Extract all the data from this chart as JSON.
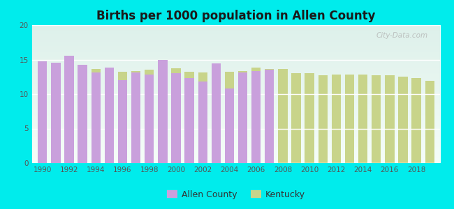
{
  "title": "Births per 1000 population in Allen County",
  "background_color": "#00ECEC",
  "plot_bg_top": "#ddf0ea",
  "plot_bg_bottom": "#f5fdf8",
  "years": [
    1990,
    1991,
    1992,
    1993,
    1994,
    1995,
    1996,
    1997,
    1998,
    1999,
    2000,
    2001,
    2002,
    2003,
    2004,
    2005,
    2006,
    2007,
    2008,
    2009,
    2010,
    2011,
    2012,
    2013,
    2014,
    2015,
    2016,
    2017,
    2018,
    2019
  ],
  "allen_county": [
    14.7,
    14.5,
    15.6,
    14.2,
    13.1,
    13.8,
    12.0,
    13.1,
    12.8,
    14.9,
    13.0,
    12.3,
    11.8,
    14.4,
    10.8,
    13.1,
    13.3,
    13.5,
    null,
    null,
    null,
    null,
    null,
    null,
    null,
    null,
    null,
    null,
    null,
    null
  ],
  "kentucky": [
    14.6,
    14.3,
    14.2,
    13.8,
    13.6,
    13.6,
    13.2,
    13.3,
    13.5,
    13.5,
    13.7,
    13.2,
    13.1,
    13.1,
    13.2,
    13.3,
    13.8,
    13.6,
    13.6,
    13.0,
    13.0,
    12.7,
    12.8,
    12.8,
    12.8,
    12.7,
    12.7,
    12.5,
    12.3,
    11.9
  ],
  "allen_color": "#c9a0dc",
  "kentucky_color": "#c8d48a",
  "bar_width": 0.7,
  "ylim": [
    0,
    20
  ],
  "yticks": [
    0,
    5,
    10,
    15,
    20
  ],
  "xticks": [
    1990,
    1992,
    1994,
    1996,
    1998,
    2000,
    2002,
    2004,
    2006,
    2008,
    2010,
    2012,
    2014,
    2016,
    2018
  ],
  "watermark": "City-Data.com"
}
